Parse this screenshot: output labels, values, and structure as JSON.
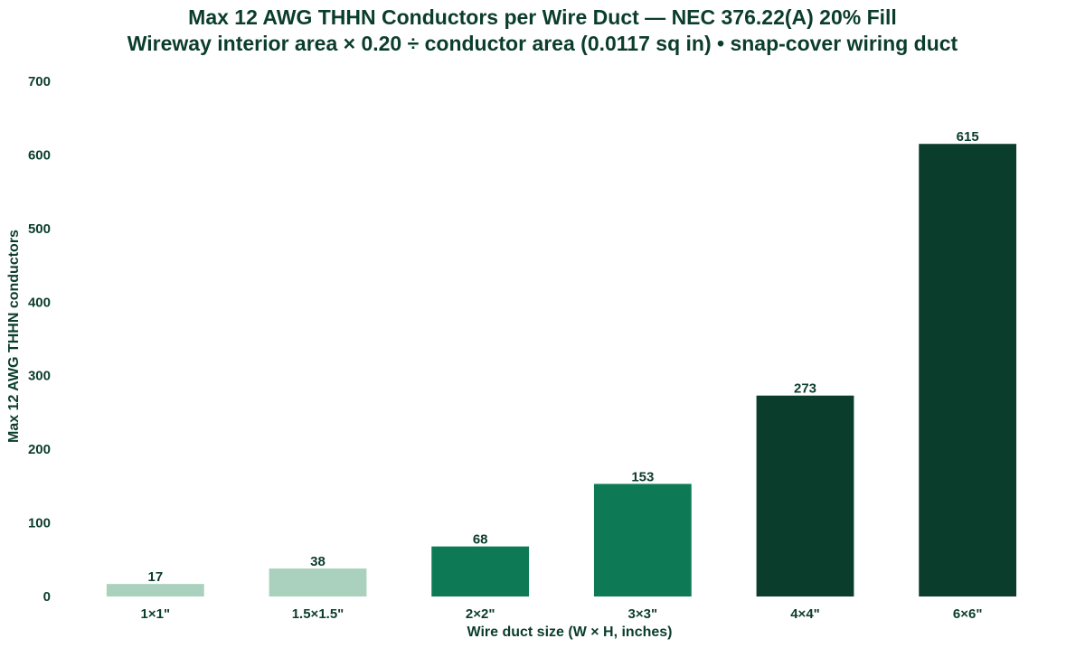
{
  "chart_data": {
    "type": "bar",
    "title": "Max 12 AWG THHN Conductors per Wire Duct — NEC 376.22(A) 20% Fill",
    "subtitle": "Wireway interior area × 0.20 ÷ conductor area (0.0117 sq in)  •  snap-cover wiring duct",
    "xlabel": "Wire duct size (W × H, inches)",
    "ylabel": "Max 12 AWG THHN conductors",
    "categories": [
      "1×1\"",
      "1.5×1.5\"",
      "2×2\"",
      "3×3\"",
      "4×4\"",
      "6×6\""
    ],
    "values": [
      17,
      38,
      68,
      153,
      273,
      615
    ],
    "bar_colors": [
      "#a9d1bd",
      "#a9d1bd",
      "#0e7a55",
      "#0e7a55",
      "#0b3d2c",
      "#0b3d2c"
    ],
    "ylim": [
      0,
      700
    ],
    "yticks": [
      0,
      100,
      200,
      300,
      400,
      500,
      600,
      700
    ],
    "grid": false,
    "data_labels": true
  }
}
